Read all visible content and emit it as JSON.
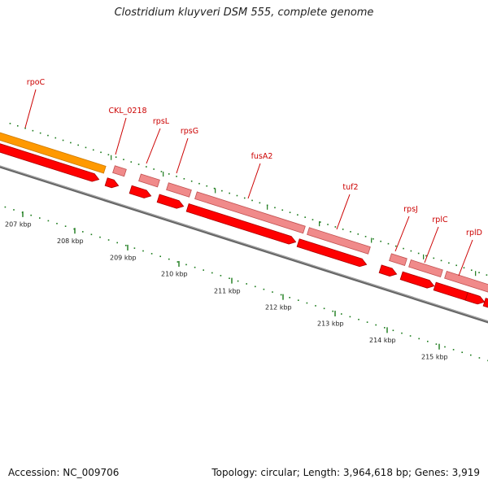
{
  "title": "Clostridium kluyveri DSM 555, complete genome",
  "accession": "Accession: NC_009706",
  "summary": "Topology: circular; Length: 3,964,618 bp; Genes: 3,919",
  "colors": {
    "gene_label": "#cc0000",
    "gene_strong": "#ff0000",
    "gene_light": "#f08a8a",
    "gene_orange": "#ff9900",
    "backbone": "#888888",
    "tick": "#1a7a1a"
  },
  "kbp_labels": [
    "207 kbp",
    "208 kbp",
    "209 kbp",
    "210 kbp",
    "211 kbp",
    "212 kbp",
    "213 kbp",
    "214 kbp",
    "215 kbp"
  ],
  "gene_labels": [
    "rpoC",
    "CKL_0218",
    "rpsL",
    "rpsG",
    "fusA2",
    "tuf2",
    "rpsJ",
    "rplC",
    "rplD"
  ]
}
